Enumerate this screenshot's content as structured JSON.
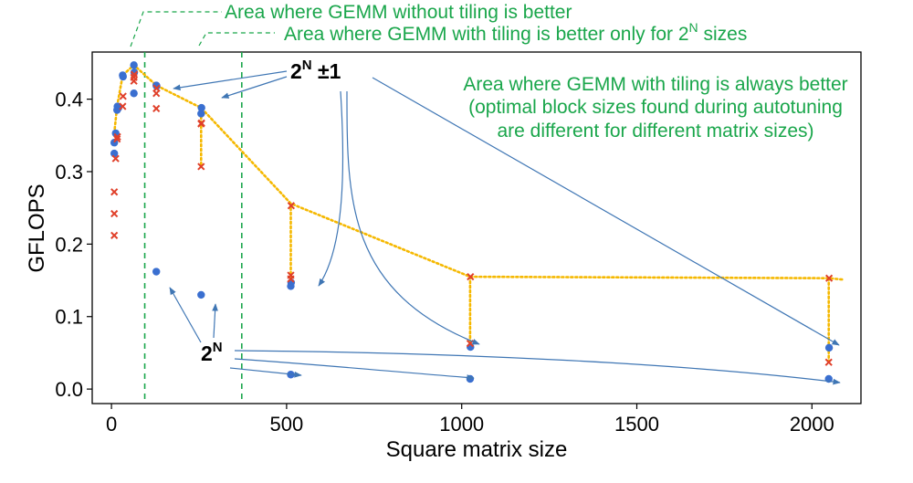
{
  "chart_data": {
    "type": "scatter",
    "xlabel": "Square matrix size",
    "ylabel": "GFLOPS",
    "xlim": [
      -55,
      2140
    ],
    "ylim": [
      -0.02,
      0.465
    ],
    "xticks": [
      0,
      500,
      1000,
      1500,
      2000
    ],
    "yticks": [
      0.0,
      0.1,
      0.2,
      0.3,
      0.4
    ],
    "xtick_labels": [
      "0",
      "500",
      "1000",
      "1500",
      "2000"
    ],
    "ytick_labels": [
      "0.0",
      "0.1",
      "0.2",
      "0.3",
      "0.4"
    ],
    "grid": false,
    "legend": "none",
    "series": [
      {
        "marker": "circle",
        "color": "#3a6fd0",
        "points": [
          [
            8,
            0.325
          ],
          [
            8,
            0.34
          ],
          [
            12,
            0.353
          ],
          [
            16,
            0.385
          ],
          [
            17,
            0.39
          ],
          [
            20,
            0.388
          ],
          [
            32,
            0.433
          ],
          [
            33,
            0.431
          ],
          [
            64,
            0.408
          ],
          [
            64,
            0.447
          ],
          [
            65,
            0.437
          ],
          [
            128,
            0.162
          ],
          [
            128,
            0.419
          ],
          [
            129,
            0.418
          ],
          [
            256,
            0.13
          ],
          [
            256,
            0.38
          ],
          [
            257,
            0.388
          ],
          [
            512,
            0.02
          ],
          [
            512,
            0.142
          ],
          [
            513,
            0.147
          ],
          [
            1024,
            0.014
          ],
          [
            1025,
            0.058
          ],
          [
            2048,
            0.014
          ],
          [
            2049,
            0.057
          ]
        ]
      },
      {
        "marker": "x",
        "color": "#e0402a",
        "points": [
          [
            8,
            0.212
          ],
          [
            8,
            0.242
          ],
          [
            8,
            0.272
          ],
          [
            12,
            0.318
          ],
          [
            16,
            0.345
          ],
          [
            17,
            0.348
          ],
          [
            32,
            0.39
          ],
          [
            33,
            0.404
          ],
          [
            64,
            0.425
          ],
          [
            64,
            0.43
          ],
          [
            65,
            0.434
          ],
          [
            128,
            0.387
          ],
          [
            128,
            0.408
          ],
          [
            129,
            0.415
          ],
          [
            256,
            0.307
          ],
          [
            256,
            0.366
          ],
          [
            257,
            0.367
          ],
          [
            512,
            0.152
          ],
          [
            512,
            0.157
          ],
          [
            513,
            0.253
          ],
          [
            1024,
            0.063
          ],
          [
            1025,
            0.155
          ],
          [
            2048,
            0.037
          ],
          [
            2049,
            0.153
          ]
        ]
      }
    ],
    "envelope": {
      "color": "#f5b800",
      "points": [
        [
          8,
          0.353
        ],
        [
          16,
          0.39
        ],
        [
          32,
          0.433
        ],
        [
          64,
          0.447
        ],
        [
          128,
          0.419
        ],
        [
          256,
          0.388
        ],
        [
          512,
          0.256
        ],
        [
          1024,
          0.155
        ],
        [
          2048,
          0.153
        ],
        [
          2090,
          0.151
        ]
      ],
      "drops": [
        [
          256,
          0.388,
          0.307
        ],
        [
          512,
          0.256,
          0.152
        ],
        [
          1024,
          0.155,
          0.058
        ],
        [
          2048,
          0.153,
          0.038
        ]
      ]
    },
    "region_lines_x": [
      95,
      372
    ],
    "annotations": {
      "no_tiling": "Area where GEMM without tiling is better",
      "tiling_2n_prefix": "Area where GEMM with tiling is better only for 2",
      "tiling_2n_sup": "N",
      "tiling_2n_suffix": " sizes",
      "always_line1": "Area where GEMM with tiling is always better",
      "always_line2": "(optimal block sizes found during autotuning",
      "always_line3": "are different for different matrix sizes)",
      "pow2_pm1_base": "2",
      "pow2_pm1_sup": "N",
      "pow2_pm1_suffix": " ±1",
      "pow2_base": "2",
      "pow2_sup": "N"
    }
  }
}
